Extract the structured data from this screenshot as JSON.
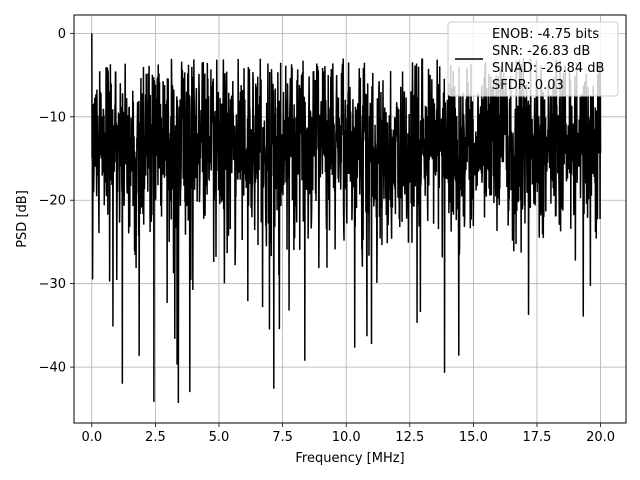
{
  "chart_data": {
    "type": "line",
    "title": "",
    "xlabel": "Frequency [MHz]",
    "ylabel": "PSD [dB]",
    "xlim": [
      -0.7,
      21.0
    ],
    "ylim": [
      -46.7,
      2.2
    ],
    "xticks": [
      0.0,
      2.5,
      5.0,
      7.5,
      10.0,
      12.5,
      15.0,
      17.5,
      20.0
    ],
    "xtick_labels": [
      "0.0",
      "2.5",
      "5.0",
      "7.5",
      "10.0",
      "12.5",
      "15.0",
      "17.5",
      "20.0"
    ],
    "yticks": [
      0,
      -10,
      -20,
      -30,
      -40
    ],
    "ytick_labels": [
      "0",
      "−10",
      "−20",
      "−30",
      "−40"
    ],
    "grid": true,
    "legend_position": "upper right",
    "line_color": "#000000",
    "legend_entries": [
      "ENOB: -4.75 bits",
      "SNR: -26.83 dB",
      "SINAD: -26.84 dB",
      "SFDR: 0.03"
    ],
    "series": [
      {
        "x_range": [
          0.0,
          20.0
        ],
        "typical_range_db": [
          -22,
          -4
        ],
        "peak_db": 0.0,
        "minimum_db": -44.3
      }
    ]
  }
}
